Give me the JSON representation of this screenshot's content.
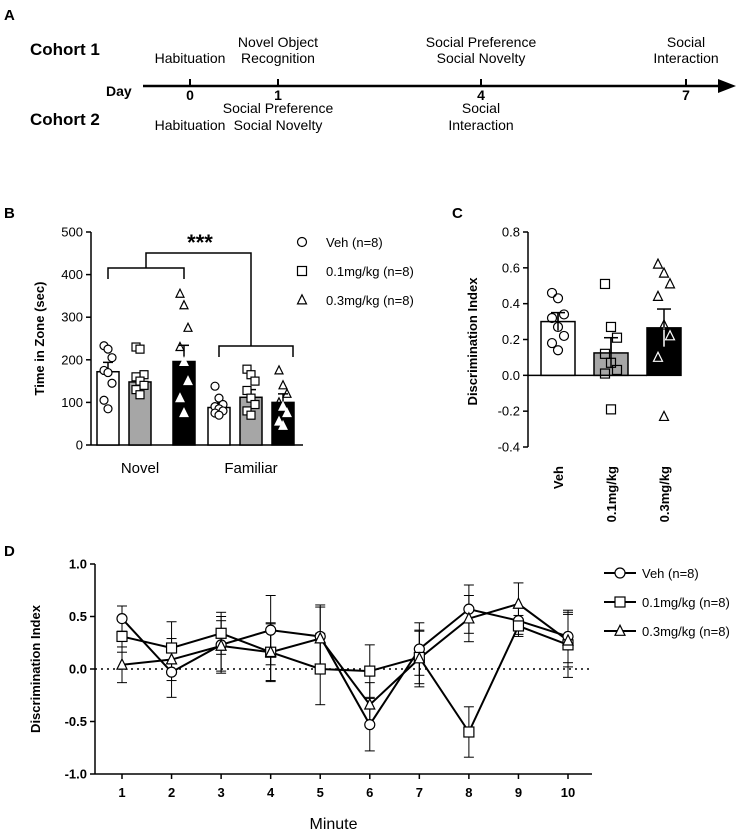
{
  "panels": {
    "a": "A",
    "b": "B",
    "c": "C",
    "d": "D"
  },
  "timeline": {
    "cohort1_label": "Cohort 1",
    "cohort2_label": "Cohort 2",
    "day_label": "Day",
    "days": [
      {
        "day": "0",
        "above": [
          "Habituation"
        ],
        "below": [
          "Habituation"
        ]
      },
      {
        "day": "1",
        "above": [
          "Novel Object",
          "Recognition"
        ],
        "below": [
          "Social Preference",
          "Social Novelty"
        ]
      },
      {
        "day": "4",
        "above": [
          "Social Preference",
          "Social Novelty"
        ],
        "below": [
          "Social",
          "Interaction"
        ]
      },
      {
        "day": "7",
        "above": [
          "Social",
          "Interaction"
        ],
        "below": []
      }
    ]
  },
  "colors": {
    "veh": "#ffffff",
    "low": "#a6a6a6",
    "high": "#000000"
  },
  "chart_data": [
    {
      "panel": "B",
      "type": "bar",
      "ylabel": "Time in Zone (sec)",
      "ylim": [
        0,
        500
      ],
      "yticks": [
        0,
        100,
        200,
        300,
        400,
        500
      ],
      "categories": [
        "Novel",
        "Familiar"
      ],
      "significance": "***",
      "series": [
        {
          "name": "Veh (n=8)",
          "marker": "circle",
          "values": [
            172,
            88
          ],
          "sem": [
            22,
            10
          ],
          "points": [
            [
              233,
              225,
              205,
              175,
              170,
              145,
              105,
              85
            ],
            [
              138,
              110,
              95,
              90,
              85,
              80,
              75,
              70
            ]
          ]
        },
        {
          "name": "0.1mg/kg (n=8)",
          "marker": "square",
          "values": [
            148,
            112
          ],
          "sem": [
            18,
            18
          ],
          "points": [
            [
              230,
              225,
              165,
              160,
              150,
              140,
              130,
              118
            ],
            [
              178,
              165,
              150,
              128,
              110,
              95,
              80,
              70
            ]
          ]
        },
        {
          "name": "0.3mg/kg (n=8)",
          "marker": "triangle",
          "values": [
            196,
            100
          ],
          "sem": [
            38,
            20
          ],
          "points": [
            [
              355,
              328,
              275,
              230,
              195,
              150,
              110,
              75
            ],
            [
              175,
              140,
              120,
              100,
              90,
              75,
              55,
              45
            ]
          ]
        }
      ],
      "legend": "right"
    },
    {
      "panel": "C",
      "type": "bar",
      "ylabel": "Discrimination Index",
      "ylim": [
        -0.4,
        0.8
      ],
      "yticks": [
        -0.4,
        -0.2,
        0.0,
        0.2,
        0.4,
        0.6,
        0.8
      ],
      "categories": [
        "Veh",
        "0.1mg/kg",
        "0.3mg/kg"
      ],
      "values": [
        0.3,
        0.125,
        0.265
      ],
      "sem": [
        0.05,
        0.085,
        0.105
      ],
      "points": [
        [
          0.46,
          0.43,
          0.34,
          0.32,
          0.27,
          0.22,
          0.18,
          0.14
        ],
        [
          0.51,
          0.27,
          0.21,
          0.12,
          0.07,
          0.03,
          0.01,
          -0.19
        ],
        [
          0.62,
          0.57,
          0.51,
          0.44,
          0.28,
          0.22,
          0.1,
          -0.23
        ]
      ],
      "markers": [
        "circle",
        "square",
        "triangle"
      ]
    },
    {
      "panel": "D",
      "type": "line",
      "xlabel": "Minute",
      "ylabel": "Discrimination Index",
      "x": [
        1,
        2,
        3,
        4,
        5,
        6,
        7,
        8,
        9,
        10
      ],
      "ylim": [
        -1.0,
        1.0
      ],
      "yticks": [
        -1.0,
        -0.5,
        0.0,
        0.5,
        1.0
      ],
      "reference_line": 0,
      "series": [
        {
          "name": "Veh (n=8)",
          "marker": "circle",
          "values": [
            0.48,
            -0.03,
            0.23,
            0.37,
            0.31,
            -0.53,
            0.19,
            0.57,
            0.46,
            0.31
          ],
          "err": [
            0.12,
            0.24,
            0.27,
            0.33,
            0.3,
            0.25,
            0.25,
            0.23,
            0.13,
            0.25
          ]
        },
        {
          "name": "0.1mg/kg (n=8)",
          "marker": "square",
          "values": [
            0.31,
            0.2,
            0.34,
            0.16,
            0.0,
            -0.02,
            0.11,
            -0.6,
            0.41,
            0.23
          ],
          "err": [
            0.15,
            0.25,
            0.2,
            0.28,
            0.34,
            0.25,
            0.25,
            0.24,
            0.1,
            0.31
          ]
        },
        {
          "name": "0.3mg/kg (n=8)",
          "marker": "triangle",
          "values": [
            0.04,
            0.09,
            0.22,
            0.16,
            0.29,
            -0.34,
            0.1,
            0.48,
            0.62,
            0.27
          ],
          "err": [
            0.17,
            0.2,
            0.24,
            0.27,
            0.3,
            0.21,
            0.27,
            0.22,
            0.2,
            0.25
          ]
        }
      ],
      "legend": "right"
    }
  ]
}
